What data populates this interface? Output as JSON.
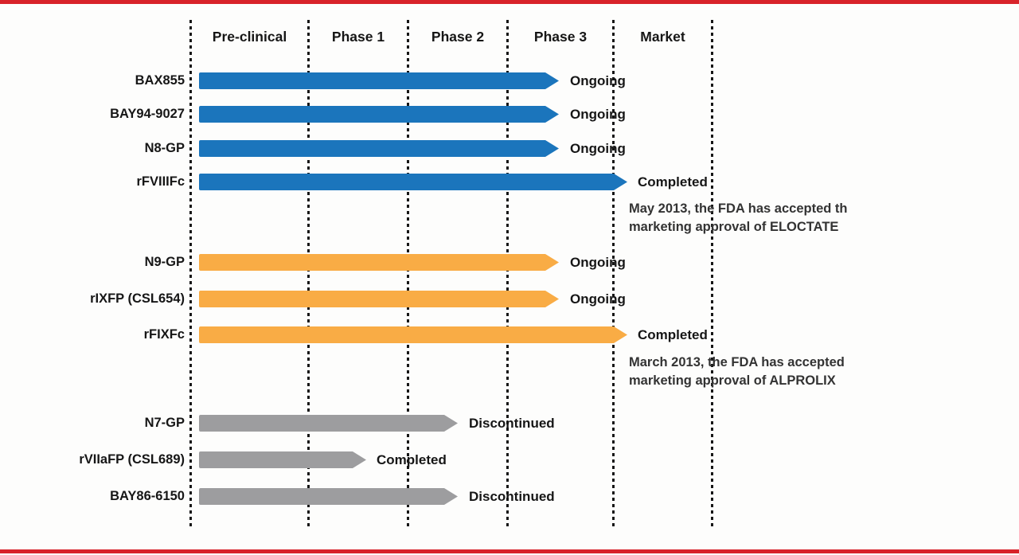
{
  "accent_colors": {
    "red_rule": "#d8232a",
    "blue_series": "#1b75bc",
    "orange_series": "#f9ac45",
    "gray_series": "#9d9d9f"
  },
  "chart_data": {
    "type": "timeline-arrows",
    "title": "Clinical development pipeline by phase",
    "phases": [
      "Pre-clinical",
      "Phase 1",
      "Phase 2",
      "Phase 3",
      "Market"
    ],
    "legend_position": "none",
    "grid": "dotted-vertical-phase-dividers",
    "rows": [
      {
        "label": "BAX855",
        "series": "blue",
        "color": "#1b75bc",
        "start_phase": "Pre-clinical",
        "end_phase": "Phase 3",
        "status": "Ongoing"
      },
      {
        "label": "BAY94-9027",
        "series": "blue",
        "color": "#1b75bc",
        "start_phase": "Pre-clinical",
        "end_phase": "Phase 3",
        "status": "Ongoing"
      },
      {
        "label": "N8-GP",
        "series": "blue",
        "color": "#1b75bc",
        "start_phase": "Pre-clinical",
        "end_phase": "Phase 3",
        "status": "Ongoing"
      },
      {
        "label": "rFVIIIFc",
        "series": "blue",
        "color": "#1b75bc",
        "start_phase": "Pre-clinical",
        "end_phase": "Market",
        "status": "Completed"
      },
      {
        "label": "N9-GP",
        "series": "orange",
        "color": "#f9ac45",
        "start_phase": "Pre-clinical",
        "end_phase": "Phase 3",
        "status": "Ongoing"
      },
      {
        "label": "rIXFP (CSL654)",
        "series": "orange",
        "color": "#f9ac45",
        "start_phase": "Pre-clinical",
        "end_phase": "Phase 3",
        "status": "Ongoing"
      },
      {
        "label": "rFIXFc",
        "series": "orange",
        "color": "#f9ac45",
        "start_phase": "Pre-clinical",
        "end_phase": "Market",
        "status": "Completed"
      },
      {
        "label": "N7-GP",
        "series": "gray",
        "color": "#9d9d9f",
        "start_phase": "Pre-clinical",
        "end_phase": "Phase 2",
        "status": "Discontinued"
      },
      {
        "label": "rVIIaFP (CSL689)",
        "series": "gray",
        "color": "#9d9d9f",
        "start_phase": "Pre-clinical",
        "end_phase": "Phase 1",
        "status": "Completed"
      },
      {
        "label": "BAY86-6150",
        "series": "gray",
        "color": "#9d9d9f",
        "start_phase": "Pre-clinical",
        "end_phase": "Phase 2",
        "status": "Discontinued"
      }
    ],
    "annotations": [
      {
        "attached_to": "rFVIIIFc",
        "line1": "May 2013, the FDA has accepted th",
        "line2": "marketing approval of ELOCTATE"
      },
      {
        "attached_to": "rFIXFc",
        "line1": "March 2013, the FDA has accepted",
        "line2": "marketing approval of ALPROLIX"
      }
    ]
  }
}
